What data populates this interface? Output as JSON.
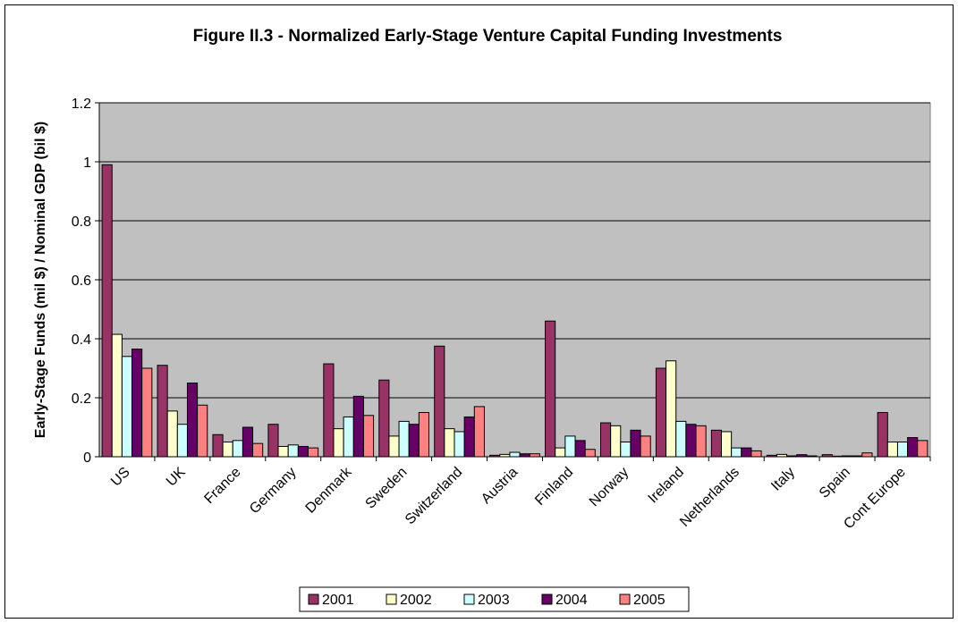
{
  "chart_data": {
    "type": "bar",
    "title": "Figure II.3 - Normalized Early-Stage Venture Capital Funding Investments",
    "y_label": "Early-Stage Funds (mil $) / Nominal GDP (bil $)",
    "categories": [
      "US",
      "UK",
      "France",
      "Germany",
      "Denmark",
      "Sweden",
      "Switzerland",
      "Austria",
      "Finland",
      "Norway",
      "Ireland",
      "Netherlands",
      "Italy",
      "Spain",
      "Cont Europe"
    ],
    "series": [
      {
        "name": "2001",
        "color": "#993366",
        "values": [
          0.99,
          0.31,
          0.075,
          0.11,
          0.315,
          0.26,
          0.375,
          0.005,
          0.46,
          0.115,
          0.3,
          0.09,
          0.005,
          0.007,
          0.15
        ]
      },
      {
        "name": "2002",
        "color": "#ffffcc",
        "values": [
          0.415,
          0.155,
          0.05,
          0.035,
          0.095,
          0.07,
          0.095,
          0.008,
          0.03,
          0.105,
          0.325,
          0.085,
          0.008,
          0.002,
          0.05
        ]
      },
      {
        "name": "2003",
        "color": "#ccffff",
        "values": [
          0.34,
          0.11,
          0.055,
          0.04,
          0.135,
          0.12,
          0.085,
          0.015,
          0.07,
          0.05,
          0.12,
          0.03,
          0.003,
          0.003,
          0.05
        ]
      },
      {
        "name": "2004",
        "color": "#660066",
        "values": [
          0.365,
          0.25,
          0.1,
          0.035,
          0.205,
          0.11,
          0.135,
          0.01,
          0.055,
          0.09,
          0.11,
          0.03,
          0.007,
          0.003,
          0.065
        ]
      },
      {
        "name": "2005",
        "color": "#ff8080",
        "values": [
          0.3,
          0.175,
          0.045,
          0.03,
          0.14,
          0.15,
          0.17,
          0.01,
          0.025,
          0.07,
          0.105,
          0.02,
          0.003,
          0.013,
          0.055
        ]
      }
    ],
    "ylim": [
      0,
      1.2
    ],
    "yticks": [
      0,
      0.2,
      0.4,
      0.6,
      0.8,
      1,
      1.2
    ],
    "grid": true,
    "legend": "bottom"
  }
}
